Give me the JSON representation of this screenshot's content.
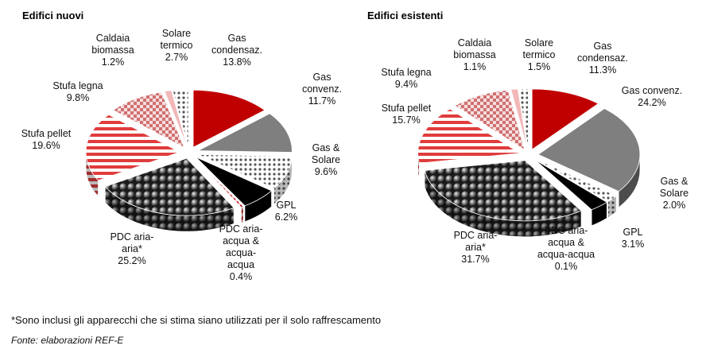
{
  "chart_data": [
    {
      "type": "pie",
      "title": "Edifici nuovi",
      "slices": [
        {
          "label": [
            "Gas",
            "condensaz.",
            "13.8%"
          ],
          "value": 13.8,
          "color": "#c00000",
          "pattern": "solid"
        },
        {
          "label": [
            "Gas",
            "convenz.",
            "11.7%"
          ],
          "value": 11.7,
          "color": "#7f7f7f",
          "pattern": "solid"
        },
        {
          "label": [
            "Gas &",
            "Solare",
            "9.6%"
          ],
          "value": 9.6,
          "color": "#d9d9d9",
          "pattern": "dots"
        },
        {
          "label": [
            "GPL",
            "6.2%"
          ],
          "value": 6.2,
          "color": "#000000",
          "pattern": "solid"
        },
        {
          "label": [
            "PDC aria-",
            "acqua &",
            "acqua-",
            "acqua",
            "0.4%"
          ],
          "value": 0.4,
          "color": "#c00000",
          "pattern": "stripes"
        },
        {
          "label": [
            "PDC aria-",
            "aria*",
            "25.2%"
          ],
          "value": 25.2,
          "color": "#3a3a3a",
          "pattern": "spheres"
        },
        {
          "label": [
            "Stufa pellet",
            "19.6%"
          ],
          "value": 19.6,
          "color": "#e03c3c",
          "pattern": "hstripes"
        },
        {
          "label": [
            "Stufa legna",
            "9.8%"
          ],
          "value": 9.8,
          "color": "#e8b0b0",
          "pattern": "checker"
        },
        {
          "label": [
            "Caldaia",
            "biomassa",
            "1.2%"
          ],
          "value": 1.2,
          "color": "#f2b8b8",
          "pattern": "solid"
        },
        {
          "label": [
            "Solare",
            "termico",
            "2.7%"
          ],
          "value": 2.7,
          "color": "#c8c8e8",
          "pattern": "dots"
        }
      ]
    },
    {
      "type": "pie",
      "title": "Edifici esistenti",
      "slices": [
        {
          "label": [
            "Gas",
            "condensaz.",
            "11.3%"
          ],
          "value": 11.3,
          "color": "#c00000",
          "pattern": "solid"
        },
        {
          "label": [
            "Gas convenz.",
            "24.2%"
          ],
          "value": 24.2,
          "color": "#7f7f7f",
          "pattern": "solid"
        },
        {
          "label": [
            "Gas &",
            "Solare",
            "2.0%"
          ],
          "value": 2.0,
          "color": "#d9d9d9",
          "pattern": "dots"
        },
        {
          "label": [
            "GPL",
            "3.1%"
          ],
          "value": 3.1,
          "color": "#000000",
          "pattern": "solid"
        },
        {
          "label": [
            "PDC aria-",
            "acqua &",
            "acqua-acqua",
            "0.1%"
          ],
          "value": 0.1,
          "color": "#c00000",
          "pattern": "stripes"
        },
        {
          "label": [
            "PDC aria-",
            "aria*",
            "31.7%"
          ],
          "value": 31.7,
          "color": "#3a3a3a",
          "pattern": "spheres"
        },
        {
          "label": [
            "Stufa pellet",
            "15.7%"
          ],
          "value": 15.7,
          "color": "#e03c3c",
          "pattern": "hstripes"
        },
        {
          "label": [
            "Stufa legna",
            "9.4%"
          ],
          "value": 9.4,
          "color": "#e8b0b0",
          "pattern": "checker"
        },
        {
          "label": [
            "Caldaia",
            "biomassa",
            "1.1%"
          ],
          "value": 1.1,
          "color": "#f2b8b8",
          "pattern": "solid"
        },
        {
          "label": [
            "Solare",
            "termico",
            "1.5%"
          ],
          "value": 1.5,
          "color": "#c8c8e8",
          "pattern": "dots"
        }
      ]
    }
  ],
  "footnote": "*Sono inclusi gli apparecchi che si stima siano utilizzati per il solo raffrescamento",
  "source": "Fonte: elaborazioni REF-E"
}
